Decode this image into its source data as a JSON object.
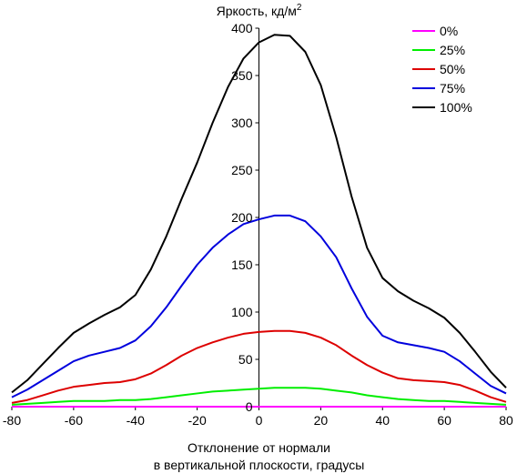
{
  "chart_data": {
    "type": "line",
    "title": "",
    "ylabel": "Яркость, кд/м",
    "ylabel_sup": "2",
    "xlabel_lines": [
      "Отклонение от нормали",
      "в вертикальной плоскости, градусы"
    ],
    "xlim": [
      -80,
      80
    ],
    "ylim": [
      0,
      400
    ],
    "xticks": [
      -80,
      -60,
      -40,
      -20,
      0,
      20,
      40,
      60,
      80
    ],
    "yticks": [
      0,
      50,
      100,
      150,
      200,
      250,
      300,
      350,
      400
    ],
    "grid": false,
    "legend_position": "top-right",
    "x": [
      -80,
      -75,
      -70,
      -65,
      -60,
      -55,
      -50,
      -45,
      -40,
      -35,
      -30,
      -25,
      -20,
      -15,
      -10,
      -5,
      0,
      5,
      10,
      15,
      20,
      25,
      30,
      35,
      40,
      45,
      50,
      55,
      60,
      65,
      70,
      75,
      80
    ],
    "series": [
      {
        "name": "0%",
        "color": "#ff00ff",
        "values": [
          0,
          0,
          0,
          0,
          0,
          0,
          0,
          0,
          0,
          0,
          0,
          0,
          0,
          0,
          0,
          0,
          0,
          0,
          0,
          0,
          0,
          0,
          0,
          0,
          0,
          0,
          0,
          0,
          0,
          0,
          0,
          0,
          0
        ]
      },
      {
        "name": "25%",
        "color": "#00ee00",
        "values": [
          2,
          3,
          4,
          5,
          6,
          6,
          6,
          7,
          7,
          8,
          10,
          12,
          14,
          16,
          17,
          18,
          19,
          20,
          20,
          20,
          19,
          17,
          15,
          12,
          10,
          8,
          7,
          6,
          6,
          5,
          4,
          3,
          2
        ]
      },
      {
        "name": "50%",
        "color": "#dd0000",
        "values": [
          4,
          7,
          12,
          17,
          21,
          23,
          25,
          26,
          29,
          35,
          44,
          54,
          62,
          68,
          73,
          77,
          79,
          80,
          80,
          78,
          73,
          65,
          54,
          44,
          36,
          30,
          28,
          27,
          26,
          23,
          17,
          10,
          5
        ]
      },
      {
        "name": "75%",
        "color": "#0000dd",
        "values": [
          10,
          18,
          28,
          38,
          48,
          54,
          58,
          62,
          70,
          85,
          105,
          128,
          150,
          168,
          182,
          193,
          198,
          202,
          202,
          196,
          180,
          158,
          125,
          95,
          75,
          68,
          65,
          62,
          58,
          48,
          35,
          22,
          14
        ]
      },
      {
        "name": "100%",
        "color": "#000000",
        "values": [
          15,
          28,
          45,
          62,
          78,
          88,
          97,
          105,
          118,
          145,
          180,
          220,
          258,
          300,
          338,
          368,
          385,
          393,
          392,
          375,
          340,
          285,
          222,
          168,
          136,
          122,
          112,
          104,
          94,
          78,
          58,
          37,
          20
        ]
      }
    ]
  }
}
